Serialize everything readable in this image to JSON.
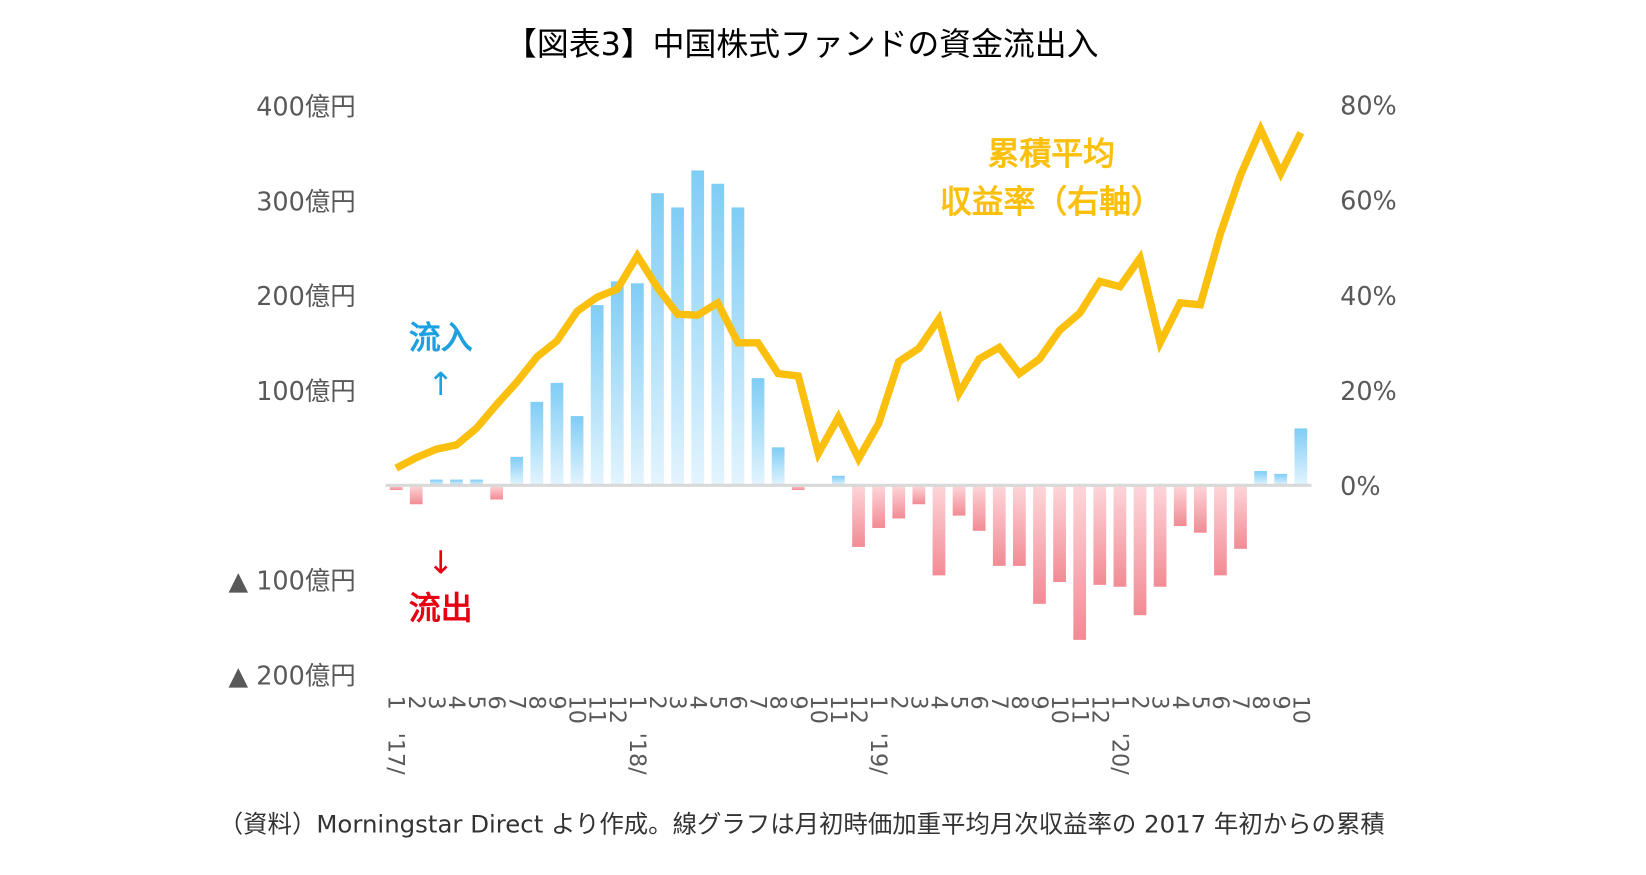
{
  "chart_data": {
    "type": "bar+line",
    "title": "【図表3】中国株式ファンドの資金流出入",
    "caption": "（資料）Morningstar Direct より作成。線グラフは月初時価加重平均月次収益率の 2017 年初からの累積",
    "left_axis": {
      "ylim": [
        -200,
        400
      ],
      "ticks": [
        "400億円",
        "300億円",
        "200億円",
        "100億円",
        "▲ 100億円",
        "▲ 200億円"
      ]
    },
    "right_axis": {
      "ylim": [
        0,
        80
      ],
      "ticks": [
        "80%",
        "60%",
        "40%",
        "20%",
        "0%"
      ]
    },
    "month_labels": [
      "1",
      "2",
      "3",
      "4",
      "5",
      "6",
      "7",
      "8",
      "9",
      "10",
      "11",
      "12",
      "1",
      "2",
      "3",
      "4",
      "5",
      "6",
      "7",
      "8",
      "9",
      "10",
      "11",
      "12",
      "1",
      "2",
      "3",
      "4",
      "5",
      "6",
      "7",
      "8",
      "9",
      "10",
      "11",
      "12",
      "1",
      "2",
      "3",
      "4",
      "5",
      "6",
      "7",
      "8",
      "9",
      "10"
    ],
    "year_labels": [
      "'17/",
      "'18/",
      "'19/",
      "'20/"
    ],
    "annotations": {
      "inflow": "流入",
      "inflow_arrow": "↑",
      "outflow": "流出",
      "outflow_arrow": "↓",
      "line_label_1": "累積平均",
      "line_label_2": "収益率（右軸）"
    },
    "bar_values": [
      -5,
      -20,
      6,
      6,
      6,
      -15,
      30,
      88,
      108,
      73,
      190,
      215,
      213,
      308,
      293,
      332,
      318,
      293,
      113,
      40,
      -5,
      0,
      10,
      -65,
      -45,
      -35,
      -20,
      -95,
      -32,
      -48,
      -85,
      -85,
      -125,
      -102,
      -163,
      -105,
      -107,
      -137,
      -107,
      -43,
      -50,
      -95,
      -67,
      15,
      12,
      60
    ],
    "line_values": [
      3.6,
      5.8,
      7.6,
      8.5,
      12,
      17,
      21.7,
      27,
      30.4,
      36.6,
      39.6,
      41.3,
      48.3,
      41.6,
      36,
      35.8,
      38.4,
      30,
      30,
      23.5,
      23,
      6.7,
      14.3,
      5.6,
      13,
      26,
      28.8,
      35,
      19.4,
      26.6,
      29,
      23.5,
      26.6,
      32.6,
      36.2,
      42.9,
      41.8,
      47.8,
      30,
      38.4,
      38,
      53,
      65.3,
      74.9,
      65.7,
      74.2
    ],
    "colors": {
      "inflow": "#7fcdf5",
      "outflow": "#f28b94",
      "line": "#fbbf0e",
      "inflow_text": "#1ba1e2",
      "outflow_text": "#e60012",
      "zero_line": "#d9d9d9"
    },
    "grid": false
  }
}
